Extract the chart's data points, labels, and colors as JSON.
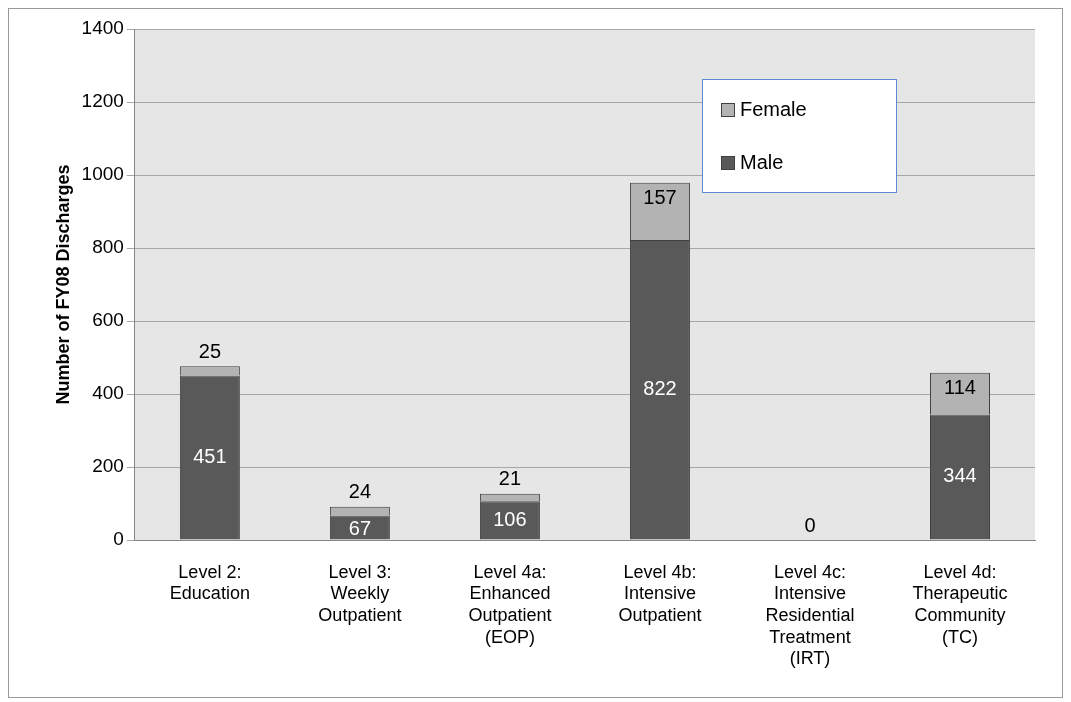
{
  "chart_data": {
    "type": "bar",
    "stacked": true,
    "ylabel": "Number of FY08 Discharges",
    "categories": [
      "Level 2: Education",
      "Level 3: Weekly Outpatient",
      "Level 4a: Enhanced Outpatient (EOP)",
      "Level 4b: Intensive Outpatient",
      "Level 4c: Intensive Residential Treatment (IRT)",
      "Level 4d: Therapeutic Community (TC)"
    ],
    "series": [
      {
        "name": "Male",
        "color": "#595959",
        "values": [
          451,
          67,
          106,
          822,
          0,
          344
        ],
        "value_labels": [
          "451",
          "67",
          "106",
          "822",
          "0",
          "344"
        ]
      },
      {
        "name": "Female",
        "color": "#b3b3b3",
        "values": [
          25,
          24,
          21,
          157,
          0,
          114
        ],
        "value_labels": [
          "25",
          "24",
          "21",
          "157",
          null,
          "114"
        ]
      }
    ],
    "ylim": [
      0,
      1400
    ],
    "yticks": [
      0,
      200,
      400,
      600,
      800,
      1000,
      1200,
      1400
    ],
    "grid": "y",
    "legend": "top right"
  }
}
